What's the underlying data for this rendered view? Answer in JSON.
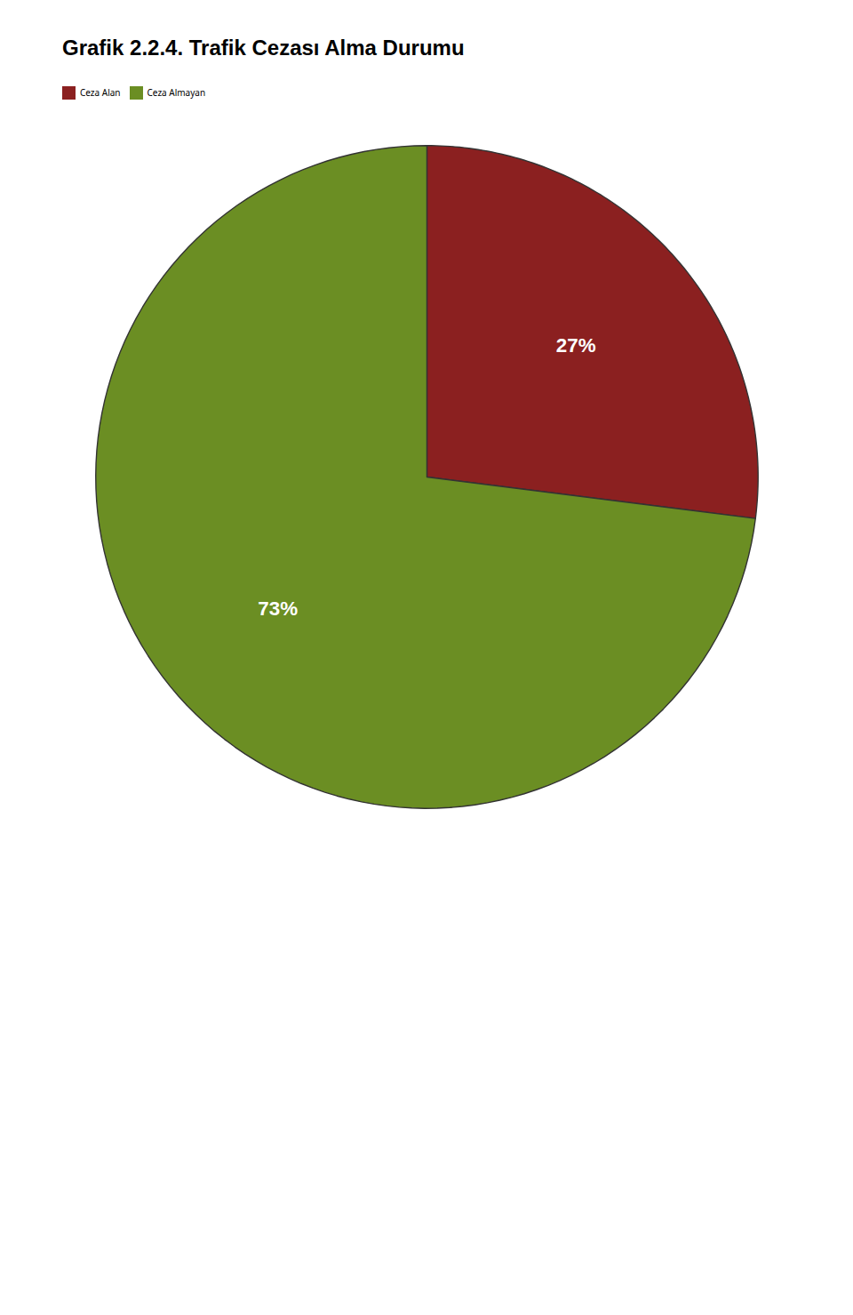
{
  "chart_data": {
    "type": "pie",
    "title": "Grafik 2.2.4. Trafik Cezası Alma Durumu",
    "categories": [
      "Ceza Alan",
      "Ceza Almayan"
    ],
    "values": [
      27,
      73
    ],
    "value_labels": [
      "27%",
      "73%"
    ],
    "colors": [
      "#8B2020",
      "#6B8E23"
    ],
    "data_labels": true,
    "legend": "top"
  }
}
